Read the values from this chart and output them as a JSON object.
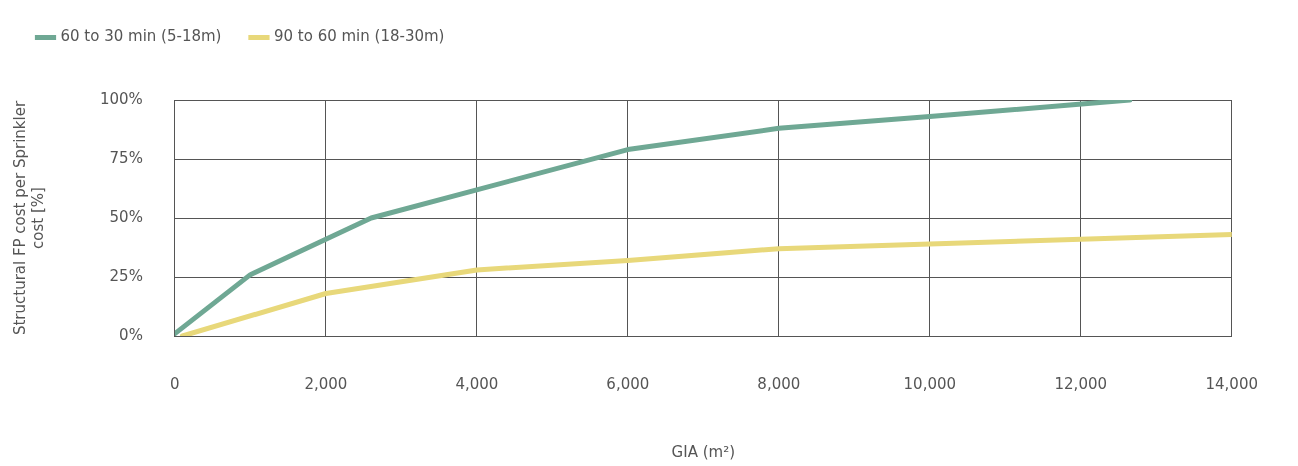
{
  "chart_data": {
    "type": "line",
    "xlabel": "GIA (m²)",
    "ylabel": "Structural FP cost per Sprinkler cost [%]",
    "series": [
      {
        "name": "60 to 30 min (5-18m)",
        "color": "#6fa894",
        "x": [
          0,
          1000,
          2600,
          6000,
          8000,
          10000,
          12650
        ],
        "values": [
          1,
          26,
          50,
          79,
          88,
          93,
          100
        ]
      },
      {
        "name": "90 to 60 min (18-30m)",
        "color": "#e8d87a",
        "x": [
          100,
          2000,
          4000,
          6000,
          8000,
          10000,
          12000,
          14000
        ],
        "values": [
          0,
          18,
          28,
          32,
          37,
          39,
          41,
          43
        ]
      }
    ],
    "xlim": [
      0,
      14000
    ],
    "xticks": [
      0,
      {
        "value": 2000,
        "label": "2,000"
      },
      {
        "value": 4000,
        "label": "4,000"
      },
      {
        "value": 6000,
        "label": "6,000"
      },
      {
        "value": 8000,
        "label": "8,000"
      },
      {
        "value": 10000,
        "label": "10,000"
      },
      {
        "value": 12000,
        "label": "12,000"
      },
      {
        "value": 14000,
        "label": "14,000"
      }
    ],
    "ylim": [
      0,
      100
    ],
    "yticks": [
      {
        "value": 0,
        "label": "0%"
      },
      {
        "value": 25,
        "label": "25%"
      },
      {
        "value": 50,
        "label": "50%"
      },
      {
        "value": 75,
        "label": "75%"
      },
      {
        "value": 100,
        "label": "100%"
      }
    ],
    "grid": true,
    "legend": "top left",
    "marker": "none",
    "line_style": "solid"
  }
}
